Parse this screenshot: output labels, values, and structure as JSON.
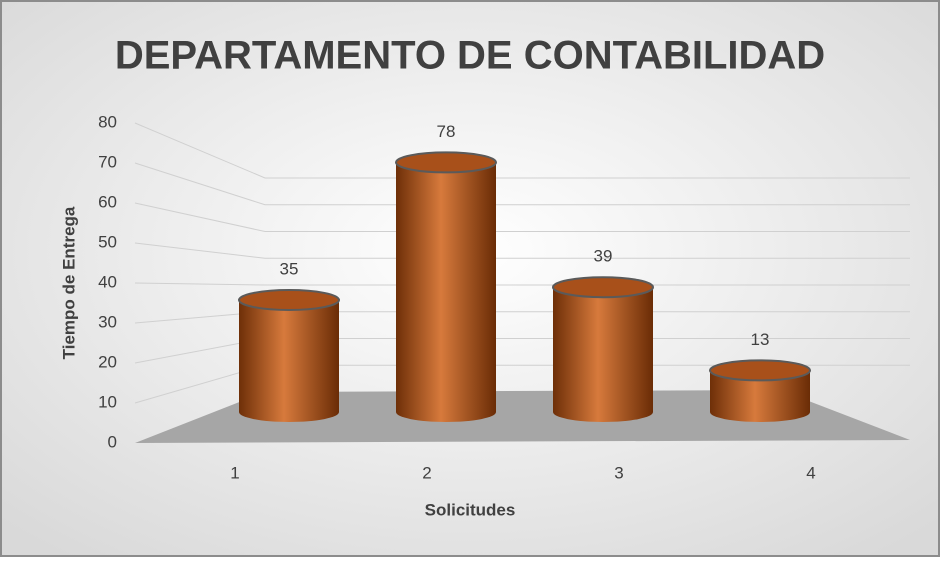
{
  "chart_data": {
    "type": "bar",
    "title": "DEPARTAMENTO DE CONTABILIDAD",
    "x_label": "Solicitudes",
    "y_label": "Tiempo de Entrega",
    "categories": [
      "1",
      "2",
      "3",
      "4"
    ],
    "values": [
      35,
      78,
      39,
      13
    ],
    "color": "#a8501a",
    "ylim": [
      0,
      80
    ],
    "yticks": [
      0,
      10,
      20,
      30,
      40,
      50,
      60,
      70,
      80
    ],
    "grid": true
  }
}
